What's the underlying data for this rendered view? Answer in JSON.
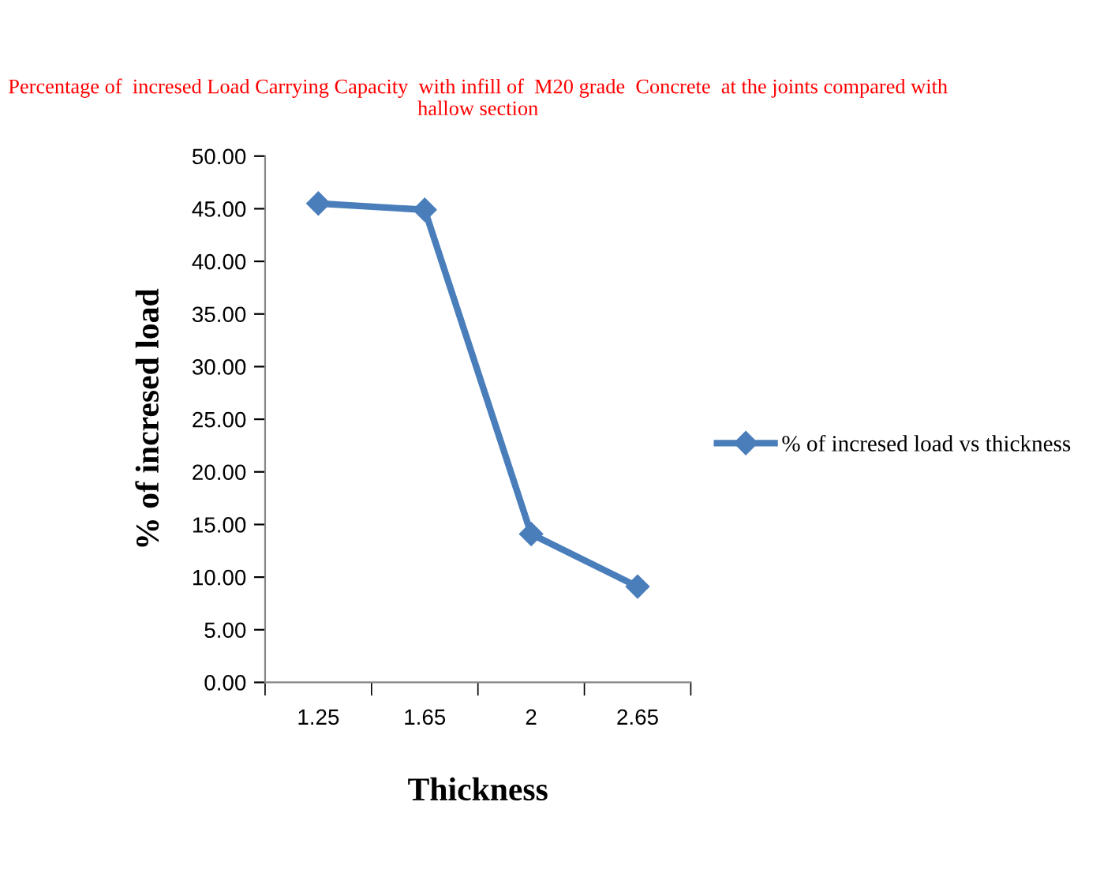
{
  "chart_data": {
    "type": "line",
    "title": "Percentage of  incresed Load Carrying Capacity  with infill of  M20 grade  Concrete  at the joints compared with hallow section",
    "xlabel": "Thickness",
    "ylabel": "% of incresed load",
    "categories": [
      "1.25",
      "1.65",
      "2",
      "2.65"
    ],
    "series": [
      {
        "name": "% of incresed load vs thickness",
        "color": "#4a7ebb",
        "values": [
          45.5,
          44.9,
          14.1,
          9.1
        ]
      }
    ],
    "ylim": [
      0,
      50
    ],
    "yticks": [
      {
        "value": 0,
        "label": "0.00"
      },
      {
        "value": 5,
        "label": "5.00"
      },
      {
        "value": 10,
        "label": "10.00"
      },
      {
        "value": 15,
        "label": "15.00"
      },
      {
        "value": 20,
        "label": "20.00"
      },
      {
        "value": 25,
        "label": "25.00"
      },
      {
        "value": 30,
        "label": "30.00"
      },
      {
        "value": 35,
        "label": "35.00"
      },
      {
        "value": 40,
        "label": "40.00"
      },
      {
        "value": 45,
        "label": "45.00"
      },
      {
        "value": 50,
        "label": "50.00"
      }
    ],
    "grid": false,
    "legend": "right",
    "marker": "diamond",
    "line_style": "solid"
  }
}
